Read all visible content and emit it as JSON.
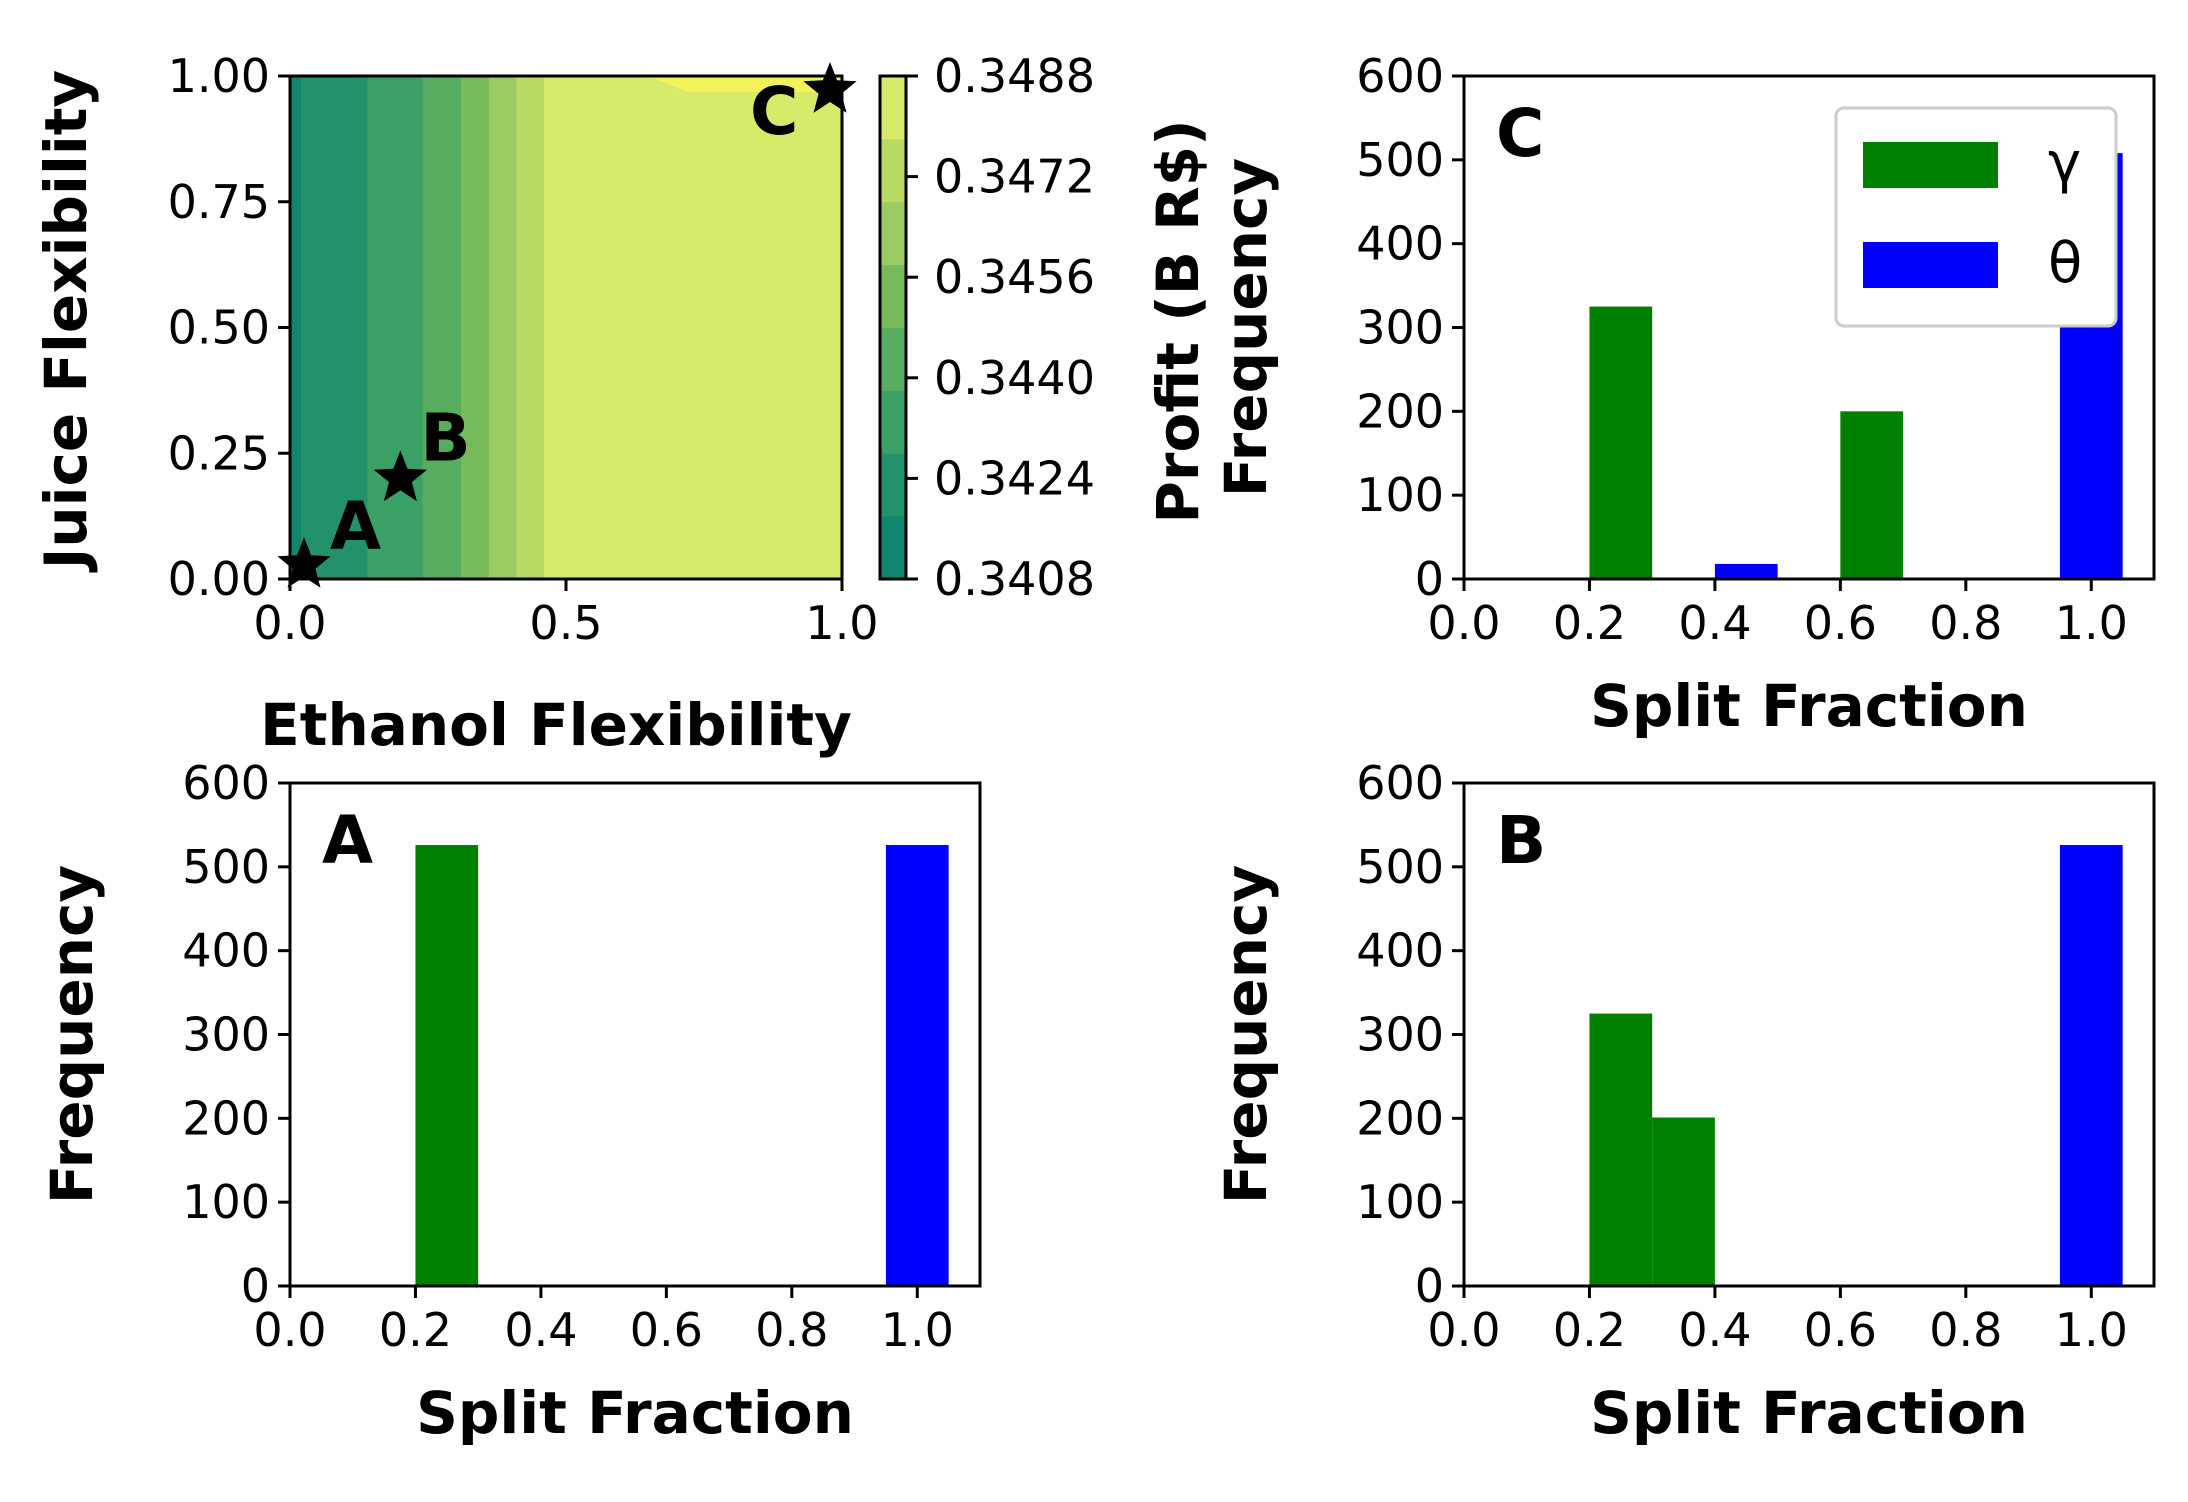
{
  "colors": {
    "gamma": "#008000",
    "theta": "#0000ff",
    "contour_low": "#0e8670",
    "contour_high": "#f2f25a"
  },
  "chart_data": [
    {
      "id": "contour",
      "type": "heatmap",
      "xlabel": "Ethanol Flexibility",
      "ylabel": "Juice Flexibility",
      "xlim": [
        0,
        1
      ],
      "ylim": [
        0,
        1
      ],
      "xticks": [
        "0.0",
        "0.5",
        "1.0"
      ],
      "yticks": [
        "0.00",
        "0.25",
        "0.50",
        "0.75",
        "1.00"
      ],
      "colorbar": {
        "label": "Profit (B R$)",
        "range": [
          0.3408,
          0.3488
        ],
        "ticks": [
          "0.3408",
          "0.3424",
          "0.3440",
          "0.3456",
          "0.3472",
          "0.3488"
        ],
        "levels": [
          0.3408,
          0.3418,
          0.3428,
          0.3438,
          0.3448,
          0.3458,
          0.3468,
          0.3478,
          0.3488
        ]
      },
      "profit_bands_by_ethanol": [
        {
          "from": 0.0,
          "to": 0.02,
          "level": 0
        },
        {
          "from": 0.02,
          "to": 0.14,
          "level": 1
        },
        {
          "from": 0.14,
          "to": 0.24,
          "level": 2
        },
        {
          "from": 0.24,
          "to": 0.31,
          "level": 3
        },
        {
          "from": 0.31,
          "to": 0.36,
          "level": 4
        },
        {
          "from": 0.36,
          "to": 0.41,
          "level": 5
        },
        {
          "from": 0.41,
          "to": 0.46,
          "level": 6
        },
        {
          "from": 0.46,
          "to": 1.0,
          "level": 7
        }
      ],
      "top_band": {
        "level": 8,
        "from_x": 0.7,
        "to_x": 1.0,
        "y": 0.98
      },
      "points": [
        {
          "label": "A",
          "x": 0.0,
          "y": 0.0
        },
        {
          "label": "B",
          "x": 0.2,
          "y": 0.2
        },
        {
          "label": "C",
          "x": 1.0,
          "y": 1.0
        }
      ]
    },
    {
      "id": "histC",
      "type": "bar",
      "panel": "C",
      "xlabel": "Split Fraction",
      "ylabel": "Frequency",
      "xlim": [
        0,
        1.1
      ],
      "ylim": [
        0,
        600
      ],
      "xticks": [
        "0.0",
        "0.2",
        "0.4",
        "0.6",
        "0.8",
        "1.0"
      ],
      "yticks": [
        "0",
        "100",
        "200",
        "300",
        "400",
        "500",
        "600"
      ],
      "legend": {
        "placement": "top-right",
        "entries": [
          "γ",
          "θ"
        ]
      },
      "series": [
        {
          "name": "γ",
          "bins": [
            {
              "x0": 0.2,
              "x1": 0.3,
              "count": 325
            },
            {
              "x0": 0.6,
              "x1": 0.7,
              "count": 200
            }
          ]
        },
        {
          "name": "θ",
          "bins": [
            {
              "x0": 0.4,
              "x1": 0.5,
              "count": 18
            },
            {
              "x0": 0.95,
              "x1": 1.05,
              "count": 508
            }
          ]
        }
      ]
    },
    {
      "id": "histA",
      "type": "bar",
      "panel": "A",
      "xlabel": "Split Fraction",
      "ylabel": "Frequency",
      "xlim": [
        0,
        1.1
      ],
      "ylim": [
        0,
        600
      ],
      "xticks": [
        "0.0",
        "0.2",
        "0.4",
        "0.6",
        "0.8",
        "1.0"
      ],
      "yticks": [
        "0",
        "100",
        "200",
        "300",
        "400",
        "500",
        "600"
      ],
      "series": [
        {
          "name": "γ",
          "bins": [
            {
              "x0": 0.2,
              "x1": 0.3,
              "count": 526
            }
          ]
        },
        {
          "name": "θ",
          "bins": [
            {
              "x0": 0.95,
              "x1": 1.05,
              "count": 526
            }
          ]
        }
      ]
    },
    {
      "id": "histB",
      "type": "bar",
      "panel": "B",
      "xlabel": "Split Fraction",
      "ylabel": "Frequency",
      "xlim": [
        0,
        1.1
      ],
      "ylim": [
        0,
        600
      ],
      "xticks": [
        "0.0",
        "0.2",
        "0.4",
        "0.6",
        "0.8",
        "1.0"
      ],
      "yticks": [
        "0",
        "100",
        "200",
        "300",
        "400",
        "500",
        "600"
      ],
      "series": [
        {
          "name": "γ",
          "bins": [
            {
              "x0": 0.2,
              "x1": 0.3,
              "count": 325
            },
            {
              "x0": 0.3,
              "x1": 0.4,
              "count": 201
            }
          ]
        },
        {
          "name": "θ",
          "bins": [
            {
              "x0": 0.95,
              "x1": 1.05,
              "count": 526
            }
          ]
        }
      ]
    }
  ]
}
